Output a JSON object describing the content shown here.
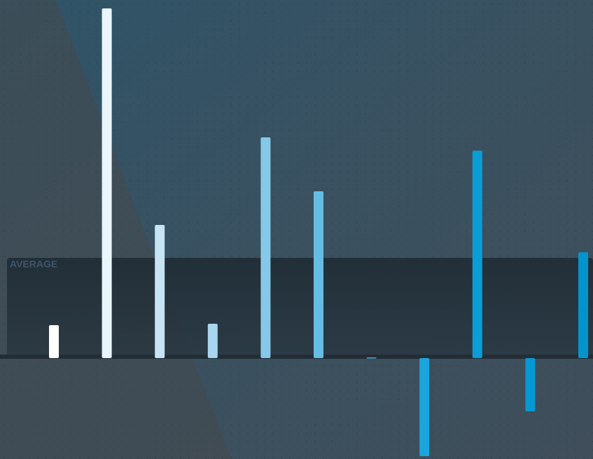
{
  "chart_data": {
    "type": "bar",
    "average_label": "AVERAGE",
    "average": 143,
    "values": [
      47,
      499,
      190,
      49,
      315,
      238,
      1,
      -140,
      296,
      -76,
      151
    ],
    "colors": [
      "#ffffff",
      "#eaf5fb",
      "#c6e4f3",
      "#a8d6ee",
      "#86c8e8",
      "#66bde4",
      "#3fb0df",
      "#1aa6dc",
      "#0a9dd6",
      "#0698d2",
      "#0494cd"
    ],
    "ylim": [
      -144,
      511
    ]
  }
}
